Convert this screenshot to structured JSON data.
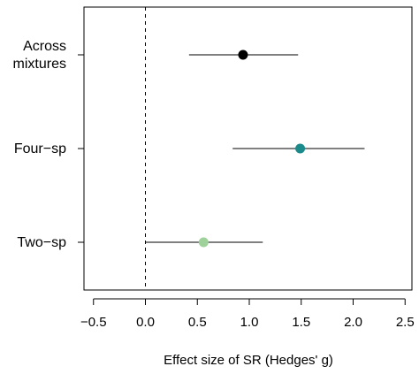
{
  "chart_data": {
    "type": "forest",
    "title": "",
    "xlabel": "Effect size of SR (Hedges' g)",
    "ylabel": "",
    "xlim": [
      -0.6,
      2.6
    ],
    "xticks": [
      -0.5,
      0.0,
      0.5,
      1.0,
      1.5,
      2.0,
      2.5
    ],
    "xtick_labels": [
      "−0.5",
      "0.0",
      "0.5",
      "1.0",
      "1.5",
      "2.0",
      "2.5"
    ],
    "reference_line": {
      "x": 0,
      "style": "dashed"
    },
    "grid": false,
    "legend": "none",
    "series": [
      {
        "label_lines": [
          "Across",
          "mixtures"
        ],
        "estimate": 0.94,
        "ci_low": 0.42,
        "ci_high": 1.47,
        "color": "#000000"
      },
      {
        "label_lines": [
          "Four−sp"
        ],
        "estimate": 1.49,
        "ci_low": 0.84,
        "ci_high": 2.11,
        "color": "#1a8a8a"
      },
      {
        "label_lines": [
          "Two−sp"
        ],
        "estimate": 0.56,
        "ci_low": 0.0,
        "ci_high": 1.13,
        "color": "#9fd29a"
      }
    ]
  }
}
